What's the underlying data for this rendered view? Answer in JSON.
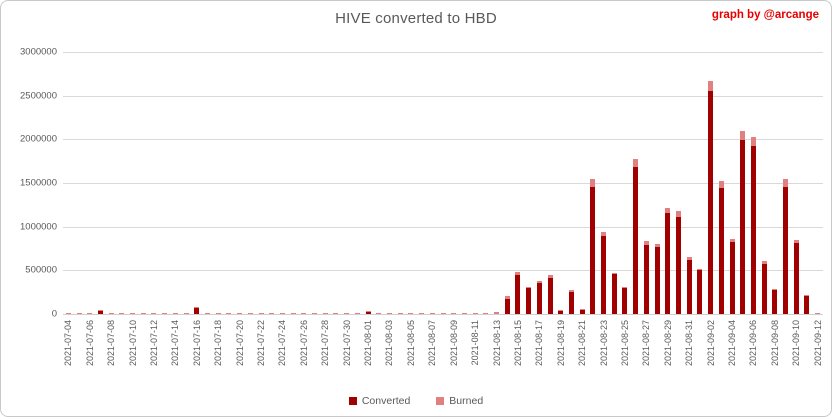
{
  "header": {
    "title": "HIVE converted to HBD",
    "credit": "graph by @arcange"
  },
  "colors": {
    "converted": "#a00000",
    "burned": "#e08080",
    "gridline": "#d9d9d9",
    "text": "#595959",
    "credit": "#e60000"
  },
  "legend": [
    {
      "label": "Converted",
      "color": "#a00000"
    },
    {
      "label": "Burned",
      "color": "#e08080"
    }
  ],
  "chart_data": {
    "type": "bar",
    "stacked": true,
    "title": "HIVE converted to HBD",
    "xlabel": "",
    "ylabel": "",
    "ylim": [
      0,
      3000000
    ],
    "ytick_step": 500000,
    "ytick_labels": [
      "0",
      "500000",
      "1000000",
      "1500000",
      "2000000",
      "2500000",
      "3000000"
    ],
    "xtick_every": 2,
    "grid": true,
    "legend_position": "bottom",
    "categories": [
      "2021-07-04",
      "2021-07-05",
      "2021-07-06",
      "2021-07-07",
      "2021-07-08",
      "2021-07-09",
      "2021-07-10",
      "2021-07-11",
      "2021-07-12",
      "2021-07-13",
      "2021-07-14",
      "2021-07-15",
      "2021-07-16",
      "2021-07-17",
      "2021-07-18",
      "2021-07-19",
      "2021-07-20",
      "2021-07-21",
      "2021-07-22",
      "2021-07-23",
      "2021-07-24",
      "2021-07-25",
      "2021-07-26",
      "2021-07-27",
      "2021-07-28",
      "2021-07-29",
      "2021-07-30",
      "2021-07-31",
      "2021-08-01",
      "2021-08-02",
      "2021-08-03",
      "2021-08-04",
      "2021-08-05",
      "2021-08-06",
      "2021-08-07",
      "2021-08-08",
      "2021-08-09",
      "2021-08-10",
      "2021-08-11",
      "2021-08-12",
      "2021-08-13",
      "2021-08-14",
      "2021-08-15",
      "2021-08-16",
      "2021-08-17",
      "2021-08-18",
      "2021-08-19",
      "2021-08-20",
      "2021-08-21",
      "2021-08-22",
      "2021-08-23",
      "2021-08-24",
      "2021-08-25",
      "2021-08-26",
      "2021-08-27",
      "2021-08-28",
      "2021-08-29",
      "2021-08-30",
      "2021-08-31",
      "2021-09-01",
      "2021-09-02",
      "2021-09-03",
      "2021-09-04",
      "2021-09-05",
      "2021-09-06",
      "2021-09-07",
      "2021-09-08",
      "2021-09-09",
      "2021-09-10",
      "2021-09-11",
      "2021-09-12"
    ],
    "series": [
      {
        "name": "Converted",
        "color": "#a00000",
        "values": [
          0,
          0,
          0,
          40000,
          0,
          0,
          0,
          0,
          0,
          0,
          0,
          0,
          65000,
          0,
          0,
          0,
          0,
          0,
          0,
          0,
          0,
          0,
          0,
          0,
          0,
          0,
          0,
          0,
          25000,
          0,
          0,
          0,
          0,
          0,
          0,
          0,
          0,
          0,
          0,
          0,
          0,
          175000,
          450000,
          300000,
          360000,
          415000,
          35000,
          255000,
          45000,
          1450000,
          890000,
          455000,
          295000,
          1680000,
          785000,
          770000,
          1160000,
          1110000,
          615000,
          500000,
          2550000,
          1440000,
          820000,
          1990000,
          1920000,
          570000,
          270000,
          1450000,
          815000,
          205000,
          0
        ]
      },
      {
        "name": "Burned",
        "color": "#e08080",
        "values": [
          12000,
          12000,
          12000,
          12000,
          12000,
          12000,
          12000,
          12000,
          12000,
          12000,
          12000,
          12000,
          12000,
          12000,
          12000,
          12000,
          12000,
          12000,
          12000,
          12000,
          12000,
          12000,
          12000,
          12000,
          12000,
          12000,
          12000,
          12000,
          12000,
          12000,
          12000,
          12000,
          12000,
          12000,
          12000,
          12000,
          12000,
          12000,
          12000,
          12000,
          18000,
          30000,
          30000,
          12000,
          25000,
          30000,
          12000,
          20000,
          12000,
          90000,
          50000,
          15000,
          12000,
          90000,
          50000,
          40000,
          55000,
          65000,
          35000,
          15000,
          110000,
          85000,
          30000,
          100000,
          105000,
          35000,
          12000,
          90000,
          40000,
          8000,
          10000
        ]
      }
    ]
  }
}
